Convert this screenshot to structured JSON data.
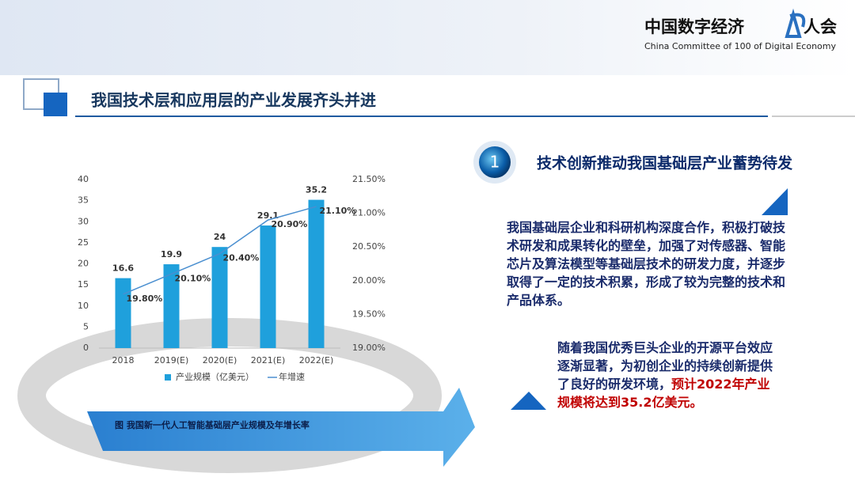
{
  "header": {
    "brand": "中国数字经济",
    "brand_suffix": "人会",
    "brand_en": "China Committee of 100 of Digital Economy"
  },
  "title": "我国技术层和应用层的产业发展齐头并进",
  "section": {
    "number": "1",
    "heading": "技术创新推动我国基础层产业蓄势待发"
  },
  "paragraphs": [
    "我国基础层企业和科研机构深度合作，积极打破技术研发和成果转化的壁垒，加强了对传感器、智能芯片及算法模型等基础层技术的研发力度，并逐步取得了一定的技术积累，形成了较为完整的技术和产品体系。",
    {
      "text": "随着我国优秀巨头企业的开源平台效应逐渐显著，为初创企业的持续创新提供了良好的研发环境，",
      "highlight": "预计2022年产业规模将达到35.2亿美元。"
    }
  ],
  "chart_data": {
    "type": "bar",
    "caption": "图  我国新一代人工智能基础层产业规模及年增长率",
    "categories": [
      "2018",
      "2019(E)",
      "2020(E)",
      "2021(E)",
      "2022(E)"
    ],
    "series": [
      {
        "name": "产业规模（亿美元）",
        "color": "#1fa0dc",
        "values": [
          16.6,
          19.9,
          24,
          29.1,
          35.2
        ]
      },
      {
        "name": "年增速",
        "type": "line",
        "axis": "y2",
        "color": "#4a8fd0",
        "values": [
          19.8,
          20.1,
          20.4,
          20.9,
          21.1
        ],
        "value_labels": [
          "19.80%",
          "20.10%",
          "20.40%",
          "20.90%",
          "21.10%"
        ]
      }
    ],
    "ylim": [
      0,
      40
    ],
    "yticks": [
      0,
      5,
      10,
      15,
      20,
      25,
      30,
      35,
      40
    ],
    "y2lim": [
      19,
      21.5
    ],
    "y2ticks": [
      {
        "value": 19,
        "label": "19.00%"
      },
      {
        "value": 19.5,
        "label": "19.50%"
      },
      {
        "value": 20,
        "label": "20.00%"
      },
      {
        "value": 20.5,
        "label": "20.50%"
      },
      {
        "value": 21,
        "label": "21.00%"
      },
      {
        "value": 21.5,
        "label": "21.50%"
      }
    ],
    "legend": "bottom"
  }
}
